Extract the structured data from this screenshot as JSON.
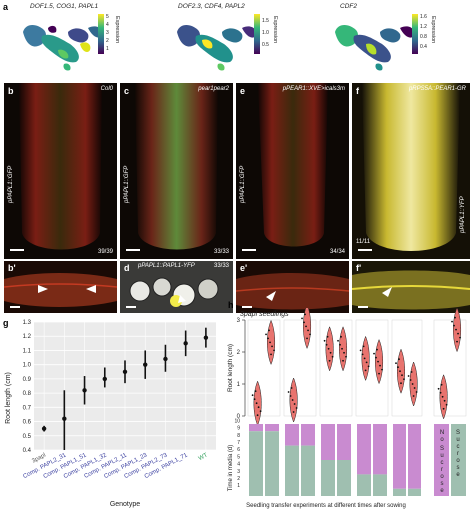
{
  "panel_labels": {
    "a": "a",
    "b": "b",
    "c": "c",
    "d_top": "d",
    "e": "e",
    "f": "f",
    "b2": "b'",
    "d": "d",
    "e2": "e'",
    "f2": "f'",
    "g": "g",
    "h": "h"
  },
  "umap": [
    {
      "title": "DOF1.5, COG1, PAPL1",
      "ticks": [
        "5",
        "4",
        "3",
        "2",
        "1"
      ],
      "cbar_label": "Expression"
    },
    {
      "title": "DOF2.3, CDF4, PAPL2",
      "ticks": [
        "1.5",
        "1.0",
        "0.5"
      ],
      "cbar_label": "Expression"
    },
    {
      "title": "CDF2",
      "ticks": [
        "1.6",
        "1.2",
        "0.8",
        "0.4"
      ],
      "cbar_label": "Expression"
    }
  ],
  "micro_top": [
    {
      "corner": "Col0",
      "side": "pPAPL1::GFP",
      "count": "39/39"
    },
    {
      "corner": "pear1pear2",
      "side": "pPAPL1::GFP",
      "count": "33/33"
    },
    {
      "corner": "pPEAR1::XVE>icals3m",
      "side": "pPAPL1::GFP",
      "count": "34/34"
    },
    {
      "corner": "pRPS5A::PEAR1-GR",
      "side": "pPAPL1::YFP",
      "count": "11/11"
    }
  ],
  "micro_bottom": [
    {
      "caption": "",
      "count": ""
    },
    {
      "caption": "pPAPL1::PAPL1-YFP",
      "count": "33/33"
    },
    {
      "caption": "",
      "count": ""
    },
    {
      "caption": "",
      "count": ""
    }
  ],
  "chart_data": [
    {
      "type": "scatter",
      "title": "",
      "xlabel": "Genotype",
      "ylabel": "Root length (cm)",
      "ylim": [
        0.4,
        1.3
      ],
      "yticks": [
        "0.4",
        "0.5",
        "0.6",
        "0.7",
        "0.8",
        "0.9",
        "1.0",
        "1.1",
        "1.2",
        "1.3"
      ],
      "categories": [
        "3papl",
        "Comp. PAPL2_31",
        "Comp. PAPL1_51",
        "Comp. PAPL1_32",
        "Comp. PAPL2_11",
        "Comp. PAPL1_23",
        "Comp. PAPL2_73",
        "Comp. PAPL1_71",
        "WT"
      ],
      "values": [
        0.55,
        0.62,
        0.82,
        0.9,
        0.95,
        1.0,
        1.04,
        1.15,
        1.19
      ],
      "err_low": [
        0.53,
        0.4,
        0.72,
        0.84,
        0.87,
        0.9,
        0.95,
        1.06,
        1.12
      ],
      "err_high": [
        0.57,
        0.82,
        0.92,
        0.98,
        1.03,
        1.1,
        1.14,
        1.24,
        1.26
      ],
      "colors": {
        "3papl": "#555555",
        "comp": "#3a3fa0",
        "WT": "#2f9e5a"
      }
    },
    {
      "type": "violin",
      "title": "3papl seedlings",
      "ylabel": "Root length (cm)",
      "ylim": [
        0,
        3
      ],
      "yticks": [
        "0",
        "1",
        "2",
        "3"
      ],
      "violin_color": "#e8736e",
      "groups": [
        {
          "a_median": 0.4,
          "b_median": 2.3
        },
        {
          "a_median": 0.5,
          "b_median": 2.8
        },
        {
          "a_median": 2.1,
          "b_median": 2.1
        },
        {
          "a_median": 1.8,
          "b_median": 1.7
        },
        {
          "a_median": 1.4,
          "b_median": 1.0
        },
        {
          "a_median": 0.6,
          "b_median": 2.7
        }
      ]
    },
    {
      "type": "stacked-bar",
      "ylabel": "Time in media (d)",
      "ylim": [
        0,
        10
      ],
      "yticks": [
        "1",
        "2",
        "3",
        "4",
        "5",
        "6",
        "7",
        "8",
        "9",
        "10"
      ],
      "colors": {
        "top": "#c98bd0",
        "bottom": "#9fbfb0"
      },
      "groups": [
        [
          9,
          9
        ],
        [
          7,
          7
        ],
        [
          5,
          5
        ],
        [
          3,
          3
        ],
        [
          1,
          1
        ]
      ],
      "xlabel": "Seedling transfer experiments at different times after sowing",
      "sucrose_labels": [
        "No Sucrose",
        "Sucrose"
      ]
    }
  ]
}
